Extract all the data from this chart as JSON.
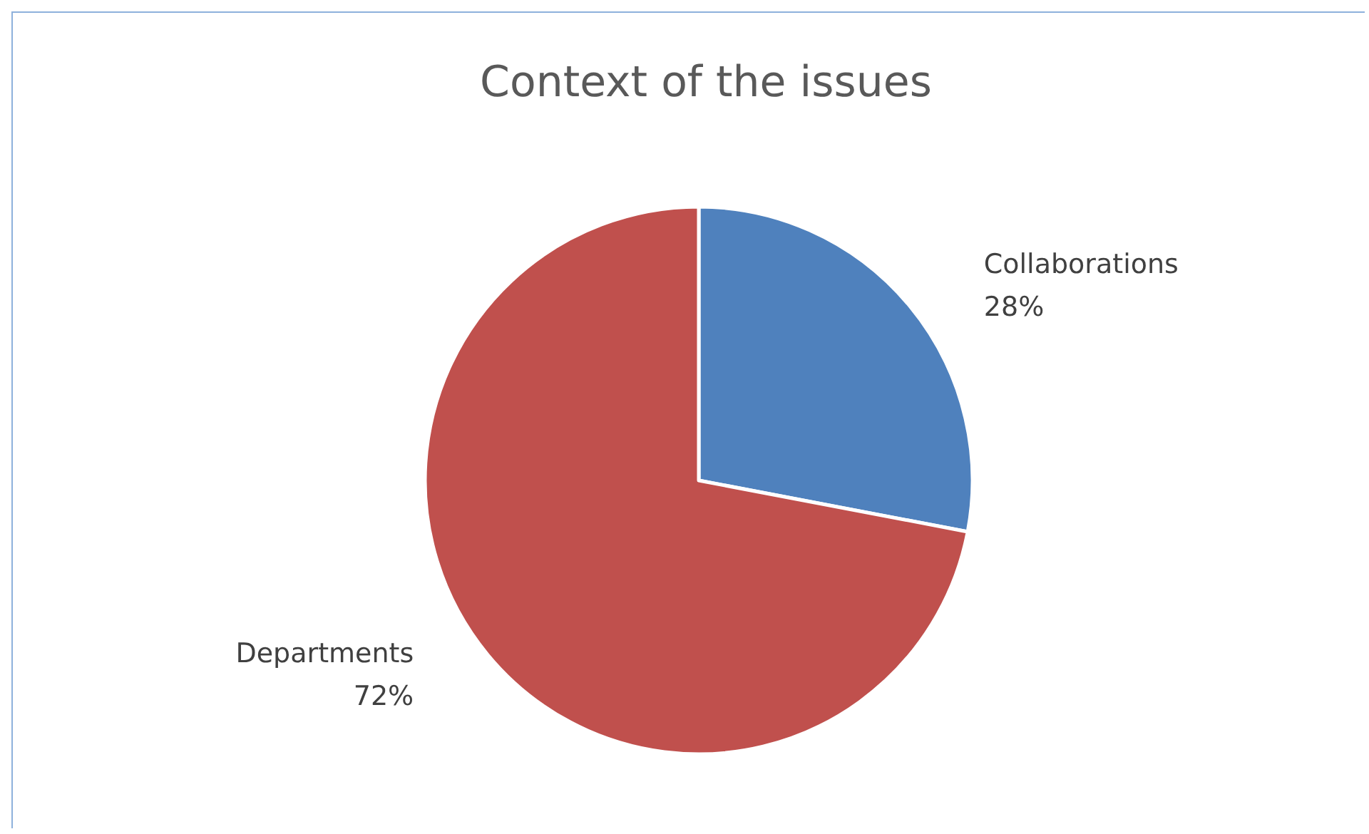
{
  "chart_data": {
    "type": "pie",
    "title": "Context of the issues",
    "categories": [
      "Collaborations",
      "Departments"
    ],
    "values": [
      28,
      72
    ],
    "colors": [
      "#4f81bd",
      "#c0504d"
    ],
    "value_labels": [
      "28%",
      "72%"
    ],
    "legend": false
  }
}
